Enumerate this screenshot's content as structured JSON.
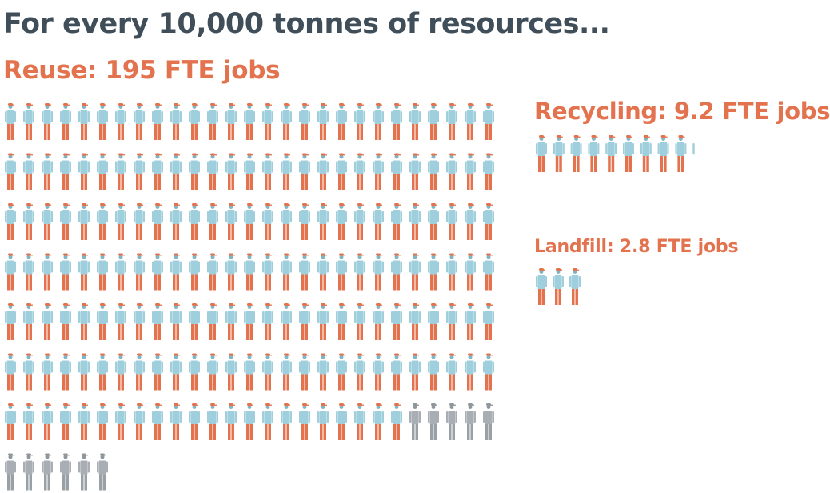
{
  "headline": "For every 10,000 tonnes of resources...",
  "colors": {
    "headline": "#3f4e58",
    "label": "#e3734e",
    "body": "#9fcfdc",
    "head": "#7fb6c6",
    "cap": "#e3734e",
    "legs": "#e3734e",
    "partial_body": "#a8aeb3",
    "partial_legs": "#9aa1a6",
    "partial_head": "#8f979c"
  },
  "icon": "worker-figure-icon",
  "chart_data": {
    "type": "pictogram",
    "title": "For every 10,000 tonnes of resources...",
    "unit": "FTE jobs",
    "series": [
      {
        "name": "Reuse",
        "label": "Reuse: 195 FTE jobs",
        "value": 195
      },
      {
        "name": "Recycling",
        "label": "Recycling: 9.2 FTE jobs",
        "value": 9.2
      },
      {
        "name": "Landfill",
        "label": "Landfill: 2.8 FTE jobs",
        "value": 2.8
      }
    ]
  }
}
